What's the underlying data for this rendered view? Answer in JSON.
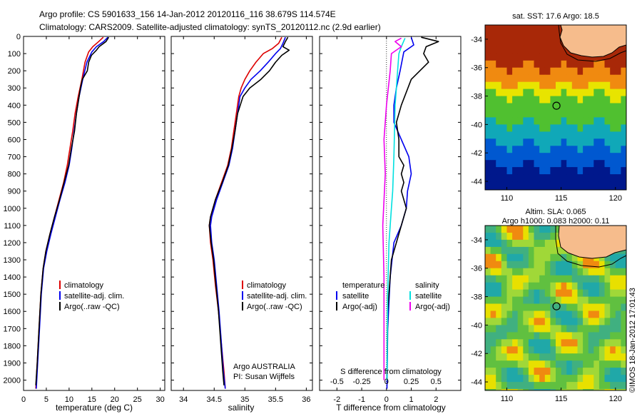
{
  "header": {
    "line1": "Argo profile: CS 5901633_156 14-Jan-2012 20120116_116 38.679S 114.574E",
    "line2": "Climatology: CARS2009. Satellite-adjusted climatology: synTS_20120112.nc (2.9d earlier)"
  },
  "colors": {
    "climatology": "#dd0000",
    "satellite": "#0000ee",
    "argo": "#000000",
    "sat_salinity": "#00e0e0",
    "argo_salinity": "#ee00ee",
    "land": "#f6bc8c"
  },
  "chart_data": [
    {
      "type": "line",
      "xlabel": "temperature (deg C)",
      "xlim": [
        0,
        31
      ],
      "xticks": [
        0,
        5,
        10,
        15,
        20,
        25,
        30
      ],
      "ylim": [
        2060,
        0
      ],
      "yticks": [
        0,
        100,
        200,
        300,
        400,
        500,
        600,
        700,
        800,
        900,
        1000,
        1100,
        1200,
        1300,
        1400,
        1500,
        1600,
        1700,
        1800,
        1900,
        2000
      ],
      "legend": [
        "climatology",
        "satellite-adj. clim.",
        "Argo(..raw -QC)"
      ],
      "series": [
        {
          "name": "climatology",
          "color_key": "climatology",
          "points": [
            [
              17.5,
              5
            ],
            [
              16.5,
              30
            ],
            [
              15.2,
              60
            ],
            [
              14.3,
              90
            ],
            [
              13.5,
              150
            ],
            [
              12.8,
              250
            ],
            [
              12.0,
              350
            ],
            [
              11.3,
              450
            ],
            [
              10.8,
              550
            ],
            [
              10.2,
              650
            ],
            [
              9.6,
              750
            ],
            [
              8.8,
              850
            ],
            [
              7.8,
              950
            ],
            [
              6.8,
              1050
            ],
            [
              5.8,
              1150
            ],
            [
              4.9,
              1250
            ],
            [
              4.3,
              1350
            ],
            [
              3.8,
              1500
            ],
            [
              3.4,
              1700
            ],
            [
              3.0,
              1900
            ],
            [
              2.7,
              2050
            ]
          ]
        },
        {
          "name": "satellite-adj. clim.",
          "color_key": "satellite",
          "points": [
            [
              18.5,
              5
            ],
            [
              17.6,
              30
            ],
            [
              16.0,
              60
            ],
            [
              15.0,
              90
            ],
            [
              13.9,
              150
            ],
            [
              13.0,
              250
            ],
            [
              12.2,
              350
            ],
            [
              11.6,
              450
            ],
            [
              11.1,
              550
            ],
            [
              10.6,
              650
            ],
            [
              10.0,
              750
            ],
            [
              9.1,
              850
            ],
            [
              8.0,
              950
            ],
            [
              7.0,
              1050
            ],
            [
              6.0,
              1150
            ],
            [
              5.1,
              1250
            ],
            [
              4.4,
              1350
            ],
            [
              3.9,
              1500
            ],
            [
              3.5,
              1700
            ],
            [
              3.1,
              1900
            ],
            [
              2.8,
              2050
            ]
          ]
        },
        {
          "name": "Argo(..raw -QC)",
          "color_key": "argo",
          "points": [
            [
              18.7,
              5
            ],
            [
              18.1,
              30
            ],
            [
              16.6,
              60
            ],
            [
              16.0,
              80
            ],
            [
              14.9,
              110
            ],
            [
              14.3,
              150
            ],
            [
              14.0,
              200
            ],
            [
              12.9,
              250
            ],
            [
              12.5,
              300
            ],
            [
              12.2,
              350
            ],
            [
              11.6,
              450
            ],
            [
              11.2,
              550
            ],
            [
              10.5,
              650
            ],
            [
              9.9,
              750
            ],
            [
              8.9,
              850
            ],
            [
              7.9,
              950
            ],
            [
              6.8,
              1050
            ],
            [
              5.8,
              1150
            ],
            [
              4.9,
              1250
            ],
            [
              4.3,
              1350
            ],
            [
              3.8,
              1500
            ],
            [
              3.4,
              1700
            ],
            [
              3.0,
              1900
            ],
            [
              2.7,
              2030
            ]
          ]
        }
      ]
    },
    {
      "type": "line",
      "xlabel": "salinity",
      "xlim": [
        33.8,
        36.1
      ],
      "xticks": [
        34,
        34.5,
        35,
        35.5,
        36
      ],
      "ylim": [
        2060,
        0
      ],
      "legend": [
        "climatology",
        "satellite-adj. clim.",
        "Argo(..raw -QC)"
      ],
      "annotation": [
        "Argo AUSTRALIA",
        "PI: Susan Wijffels"
      ],
      "series": [
        {
          "name": "climatology",
          "color_key": "climatology",
          "points": [
            [
              35.6,
              5
            ],
            [
              35.55,
              40
            ],
            [
              35.45,
              70
            ],
            [
              35.3,
              100
            ],
            [
              35.18,
              150
            ],
            [
              35.08,
              200
            ],
            [
              35.0,
              250
            ],
            [
              34.94,
              300
            ],
            [
              34.9,
              350
            ],
            [
              34.86,
              450
            ],
            [
              34.82,
              550
            ],
            [
              34.78,
              650
            ],
            [
              34.72,
              750
            ],
            [
              34.62,
              850
            ],
            [
              34.52,
              950
            ],
            [
              34.44,
              1050
            ],
            [
              34.42,
              1100
            ],
            [
              34.44,
              1200
            ],
            [
              34.48,
              1300
            ],
            [
              34.52,
              1450
            ],
            [
              34.57,
              1600
            ],
            [
              34.62,
              1800
            ],
            [
              34.66,
              1950
            ],
            [
              34.68,
              2050
            ]
          ]
        },
        {
          "name": "satellite-adj. clim.",
          "color_key": "satellite",
          "points": [
            [
              35.66,
              5
            ],
            [
              35.62,
              40
            ],
            [
              35.58,
              70
            ],
            [
              35.5,
              100
            ],
            [
              35.38,
              150
            ],
            [
              35.25,
              200
            ],
            [
              35.1,
              250
            ],
            [
              35.0,
              300
            ],
            [
              34.92,
              350
            ],
            [
              34.88,
              450
            ],
            [
              34.84,
              550
            ],
            [
              34.8,
              650
            ],
            [
              34.74,
              750
            ],
            [
              34.64,
              850
            ],
            [
              34.54,
              950
            ],
            [
              34.46,
              1050
            ],
            [
              34.44,
              1100
            ],
            [
              34.46,
              1200
            ],
            [
              34.5,
              1300
            ],
            [
              34.54,
              1450
            ],
            [
              34.58,
              1600
            ],
            [
              34.62,
              1800
            ],
            [
              34.65,
              1950
            ],
            [
              34.68,
              2050
            ]
          ]
        },
        {
          "name": "Argo(..raw -QC)",
          "color_key": "argo",
          "points": [
            [
              35.7,
              5
            ],
            [
              35.66,
              30
            ],
            [
              35.62,
              60
            ],
            [
              35.72,
              80
            ],
            [
              35.6,
              110
            ],
            [
              35.5,
              150
            ],
            [
              35.4,
              200
            ],
            [
              35.26,
              250
            ],
            [
              35.08,
              300
            ],
            [
              34.97,
              350
            ],
            [
              34.88,
              450
            ],
            [
              34.84,
              550
            ],
            [
              34.79,
              650
            ],
            [
              34.73,
              750
            ],
            [
              34.63,
              850
            ],
            [
              34.52,
              950
            ],
            [
              34.44,
              1050
            ],
            [
              34.42,
              1100
            ],
            [
              34.45,
              1200
            ],
            [
              34.49,
              1300
            ],
            [
              34.53,
              1450
            ],
            [
              34.57,
              1600
            ],
            [
              34.61,
              1800
            ],
            [
              34.64,
              1950
            ],
            [
              34.66,
              2030
            ]
          ]
        }
      ]
    },
    {
      "type": "line",
      "xlabel": "T difference from climatology",
      "xlabel_top": "S difference from climatology",
      "xlim": [
        -2.7,
        3.0
      ],
      "xticks": [
        -2,
        -1,
        0,
        1,
        2
      ],
      "xticks_top_labels": [
        "-0.5",
        "-0.25",
        "0",
        "0.25",
        "0.5"
      ],
      "ylim": [
        2060,
        0
      ],
      "legend_left_title": "temperature",
      "legend_right_title": "salinity",
      "legend": [
        "satellite",
        "Argo(-adj)",
        "satellite",
        "Argo(-adj)"
      ],
      "series": [
        {
          "name": "satellite",
          "group": "temperature",
          "color_key": "satellite",
          "points": [
            [
              1.0,
              5
            ],
            [
              1.1,
              50
            ],
            [
              0.7,
              90
            ],
            [
              0.55,
              200
            ],
            [
              0.4,
              300
            ],
            [
              0.3,
              400
            ],
            [
              0.3,
              500
            ],
            [
              0.6,
              600
            ],
            [
              0.9,
              700
            ],
            [
              1.0,
              800
            ],
            [
              0.85,
              900
            ],
            [
              0.8,
              1000
            ],
            [
              0.6,
              1100
            ],
            [
              0.3,
              1200
            ],
            [
              0.15,
              1400
            ],
            [
              0.05,
              1700
            ],
            [
              0.02,
              2050
            ]
          ]
        },
        {
          "name": "Argo(-adj)",
          "group": "temperature",
          "color_key": "argo",
          "points": [
            [
              1.4,
              5
            ],
            [
              2.1,
              30
            ],
            [
              1.6,
              60
            ],
            [
              1.5,
              100
            ],
            [
              1.7,
              150
            ],
            [
              1.0,
              250
            ],
            [
              0.6,
              400
            ],
            [
              0.4,
              500
            ],
            [
              0.5,
              600
            ],
            [
              0.5,
              700
            ],
            [
              0.7,
              750
            ],
            [
              0.6,
              800
            ],
            [
              0.7,
              850
            ],
            [
              0.6,
              900
            ],
            [
              0.8,
              1000
            ],
            [
              0.6,
              1100
            ],
            [
              0.2,
              1300
            ],
            [
              0.05,
              1600
            ],
            [
              0.02,
              2000
            ]
          ]
        },
        {
          "name": "satellite",
          "group": "salinity",
          "color_key": "sat_salinity",
          "points": [
            [
              0.75,
              10
            ],
            [
              0.6,
              60
            ],
            [
              0.5,
              100
            ],
            [
              0.45,
              200
            ],
            [
              0.35,
              400
            ],
            [
              0.3,
              700
            ],
            [
              0.25,
              900
            ],
            [
              0.2,
              1000
            ],
            [
              0.1,
              1200
            ],
            [
              0.05,
              1500
            ],
            [
              0.02,
              2000
            ]
          ]
        },
        {
          "name": "Argo(-adj)",
          "group": "salinity",
          "color_key": "argo_salinity",
          "points": [
            [
              0.6,
              10
            ],
            [
              0.35,
              30
            ],
            [
              0.6,
              60
            ],
            [
              0.2,
              100
            ],
            [
              0.15,
              200
            ],
            [
              0.0,
              400
            ],
            [
              -0.1,
              600
            ],
            [
              -0.05,
              800
            ],
            [
              -0.15,
              1100
            ],
            [
              -0.1,
              1400
            ],
            [
              -0.1,
              1700
            ],
            [
              -0.1,
              2000
            ]
          ]
        }
      ]
    },
    {
      "type": "heatmap",
      "title": "sat. SST: 17.6  Argo: 18.5",
      "xlim": [
        108,
        121
      ],
      "ylim": [
        -44.6,
        -33
      ],
      "xticks": [
        110,
        115,
        120
      ],
      "yticks": [
        -34,
        -36,
        -38,
        -40,
        -42,
        -44
      ],
      "argo_position": [
        114.574,
        -38.679
      ]
    },
    {
      "type": "heatmap",
      "title_line1": "Altim. SLA: 0.065",
      "title_line2": "Argo h1000: 0.083 h2000: 0.11",
      "xlim": [
        108,
        121
      ],
      "ylim": [
        -44.6,
        -33
      ],
      "xticks": [
        110,
        115,
        120
      ],
      "yticks": [
        -34,
        -36,
        -38,
        -40,
        -42,
        -44
      ],
      "argo_position": [
        114.574,
        -38.679
      ]
    }
  ],
  "credit": "©IMOS 18-Jan-2012 17:01:43"
}
